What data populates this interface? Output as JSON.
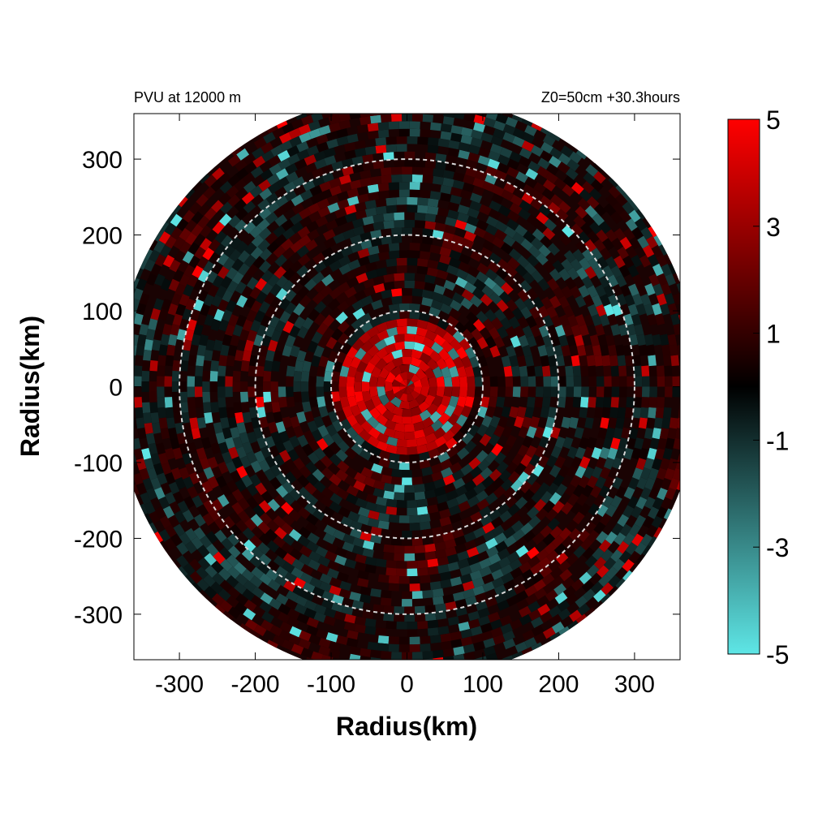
{
  "chart_data": {
    "type": "heatmap",
    "title_left": "PVU at 12000 m",
    "title_right": "Z0=50cm  +30.3hours",
    "xlabel": "Radius(km)",
    "ylabel": "Radius(km)",
    "xlim": [
      -360,
      360
    ],
    "ylim": [
      -360,
      360
    ],
    "x_ticks": [
      -300,
      -200,
      -100,
      0,
      100,
      200,
      300
    ],
    "y_ticks": [
      300,
      200,
      100,
      0,
      -100,
      -200,
      -300
    ],
    "domain_radius_km": 385,
    "range_rings_km": [
      100,
      200,
      300
    ],
    "grid": false,
    "colorbar": {
      "min": -5,
      "max": 5,
      "ticks": [
        5,
        3,
        1,
        -1,
        -3,
        -5
      ],
      "colors": [
        "#5ee6e6",
        "#000000",
        "#ff0000"
      ]
    }
  }
}
